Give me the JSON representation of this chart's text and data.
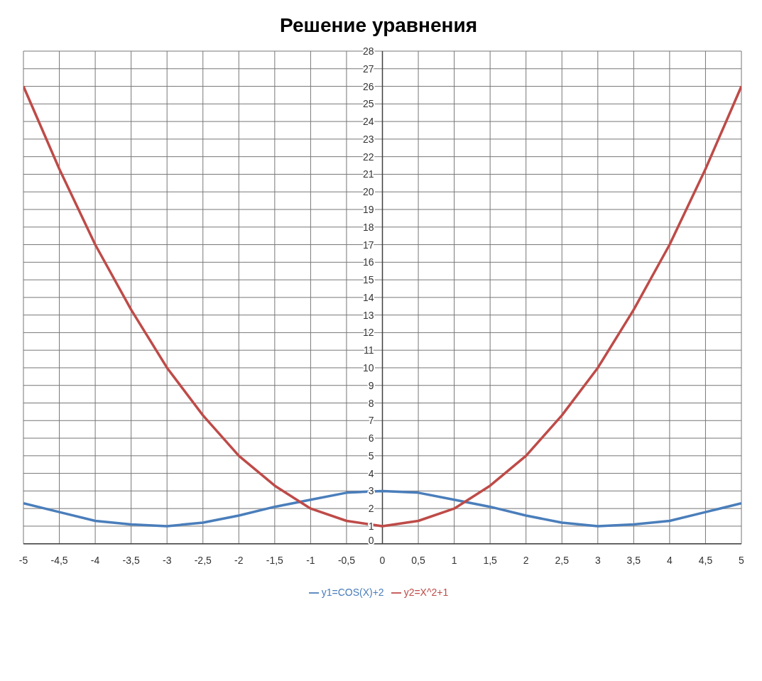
{
  "chart_data": {
    "type": "line",
    "title": "Решение уравнения",
    "x": [
      -5,
      -4.5,
      -4,
      -3.5,
      -3,
      -2.5,
      -2,
      -1.5,
      -1,
      -0.5,
      0,
      0.5,
      1,
      1.5,
      2,
      2.5,
      3,
      3.5,
      4,
      4.5,
      5
    ],
    "series": [
      {
        "name": "y1=COS(X)+2",
        "color": "#4a7ebb",
        "values": [
          2.3,
          1.8,
          1.3,
          1.1,
          1.0,
          1.2,
          1.6,
          2.1,
          2.5,
          2.9,
          3,
          2.9,
          2.5,
          2.1,
          1.6,
          1.2,
          1.0,
          1.1,
          1.3,
          1.8,
          2.3
        ]
      },
      {
        "name": "y2=X^2+1",
        "color": "#be4b48",
        "values": [
          26,
          21.3,
          17,
          13.3,
          10,
          7.3,
          5,
          3.3,
          2,
          1.3,
          1,
          1.3,
          2,
          3.3,
          5,
          7.3,
          10,
          13.3,
          17,
          21.3,
          26
        ]
      }
    ],
    "xlim": [
      -5,
      5
    ],
    "xticks": [
      -5,
      {
        "value": -4.5,
        "label": "-4,5"
      },
      -4,
      {
        "value": -3.5,
        "label": "-3,5"
      },
      -3,
      {
        "value": -2.5,
        "label": "-2,5"
      },
      -2,
      {
        "value": -1.5,
        "label": "-1,5"
      },
      -1,
      {
        "value": -0.5,
        "label": "-0,5"
      },
      0,
      {
        "value": 0.5,
        "label": "0,5"
      },
      1,
      {
        "value": 1.5,
        "label": "1,5"
      },
      2,
      {
        "value": 2.5,
        "label": "2,5"
      },
      3,
      {
        "value": 3.5,
        "label": "3,5"
      },
      4,
      {
        "value": 4.5,
        "label": "4,5"
      },
      5
    ],
    "ylim": [
      0,
      28
    ],
    "yticks": [
      0,
      1,
      2,
      3,
      4,
      5,
      6,
      7,
      8,
      9,
      10,
      11,
      12,
      13,
      14,
      15,
      16,
      17,
      18,
      19,
      20,
      21,
      22,
      23,
      24,
      25,
      26,
      27,
      28
    ],
    "grid": true,
    "legend": "bottom",
    "marker": "none",
    "line_style": "solid"
  }
}
